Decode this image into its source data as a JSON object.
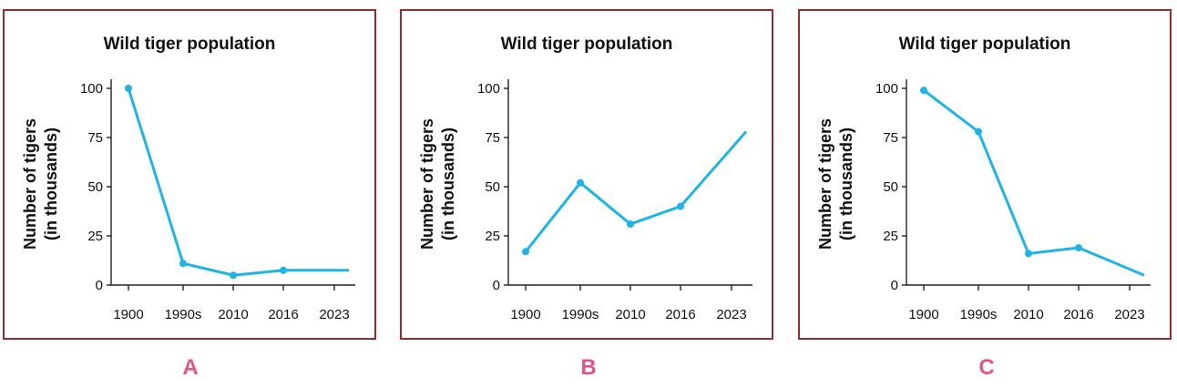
{
  "panel_letters": [
    "A",
    "B",
    "C"
  ],
  "colors": {
    "border": "#9b2a2c",
    "series": "#1fb3e6",
    "letter": "#e0558a"
  },
  "chart_data": [
    {
      "type": "line",
      "title": "Wild tiger population",
      "ylabel_line1": "Number of tigers",
      "ylabel_line2": "(in thousands)",
      "xlabel": "",
      "categories": [
        "1900",
        "1990s",
        "2010",
        "2016",
        "2023"
      ],
      "values": [
        100,
        11,
        5,
        7.5,
        7.5
      ],
      "markers": [
        true,
        true,
        true,
        true,
        false
      ],
      "yticks": [
        0,
        25,
        50,
        75,
        100
      ],
      "ylim": [
        0,
        100
      ]
    },
    {
      "type": "line",
      "title": "Wild tiger population",
      "ylabel_line1": "Number of tigers",
      "ylabel_line2": "(in thousands)",
      "xlabel": "",
      "categories": [
        "1900",
        "1990s",
        "2010",
        "2016",
        "2023"
      ],
      "values": [
        17,
        52,
        31,
        40,
        78
      ],
      "markers": [
        true,
        true,
        true,
        true,
        false
      ],
      "yticks": [
        0,
        25,
        50,
        75,
        100
      ],
      "ylim": [
        0,
        100
      ]
    },
    {
      "type": "line",
      "title": "Wild tiger population",
      "ylabel_line1": "Number of tigers",
      "ylabel_line2": "(in thousands)",
      "xlabel": "",
      "categories": [
        "1900",
        "1990s",
        "2010",
        "2016",
        "2023"
      ],
      "values": [
        99,
        78,
        16,
        19,
        5
      ],
      "markers": [
        true,
        true,
        true,
        true,
        false
      ],
      "yticks": [
        0,
        25,
        50,
        75,
        100
      ],
      "ylim": [
        0,
        100
      ]
    }
  ]
}
